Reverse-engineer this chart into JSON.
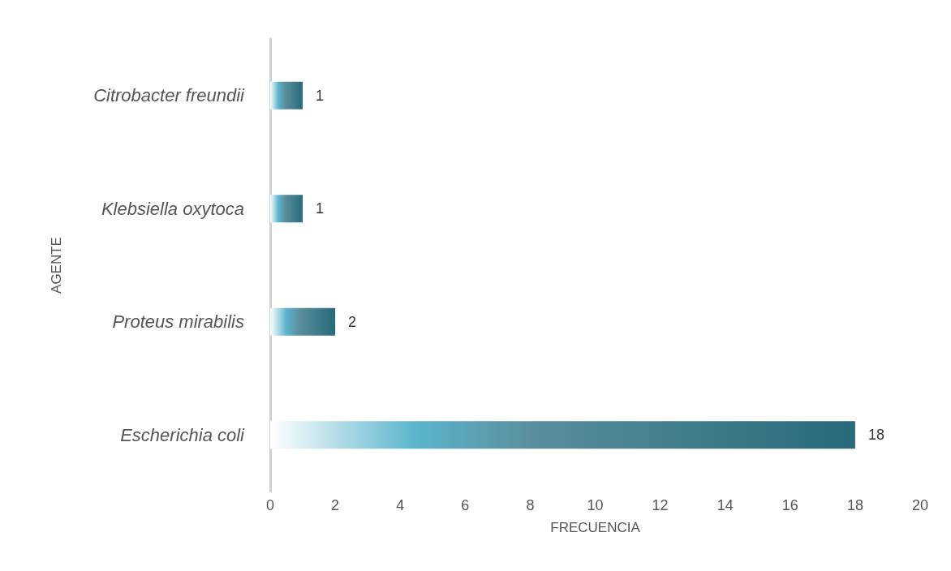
{
  "chart_data": {
    "type": "bar",
    "orientation": "horizontal",
    "xlabel": "FRECUENCIA",
    "ylabel": "AGENTE",
    "categories": [
      "Citrobacter freundii",
      "Klebsiella oxytoca",
      "Proteus mirabilis",
      "Escherichia coli"
    ],
    "values": [
      1,
      1,
      2,
      18
    ],
    "color": "#276a7a",
    "xlim": [
      0,
      20
    ],
    "xticks": [
      0,
      2,
      4,
      6,
      8,
      10,
      12,
      14,
      16,
      18,
      20
    ],
    "grid": false,
    "data_labels": true
  }
}
